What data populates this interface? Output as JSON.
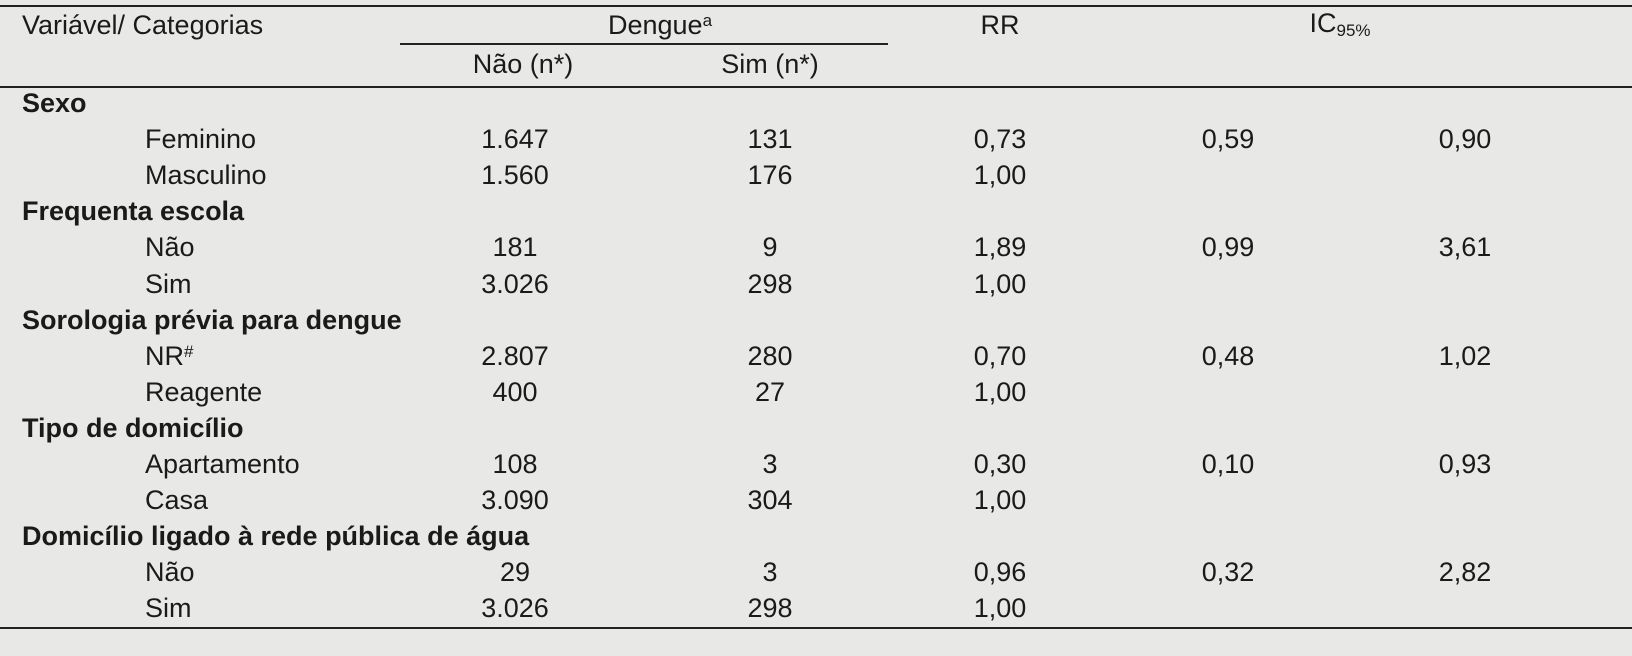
{
  "header": {
    "variable": "Variável/ Categorias",
    "dengue": "Dengue",
    "dengue_sup": "a",
    "nao": "Não (n*)",
    "sim": "Sim (n*)",
    "rr": "RR",
    "ic": "IC",
    "ic_sub": "95%"
  },
  "groups": [
    {
      "title": "Sexo",
      "rows": [
        {
          "label": "Feminino",
          "nao": "1.647",
          "sim": "131",
          "rr": "0,73",
          "ic_low": "0,59",
          "ic_high": "0,90"
        },
        {
          "label": "Masculino",
          "nao": "1.560",
          "sim": "176",
          "rr": "1,00"
        }
      ]
    },
    {
      "title": "Frequenta escola",
      "rows": [
        {
          "label": "Não",
          "nao": "181",
          "sim": "9",
          "rr": "1,89",
          "ic_low": "0,99",
          "ic_high": "3,61"
        },
        {
          "label": "Sim",
          "nao": "3.026",
          "sim": "298",
          "rr": "1,00"
        }
      ]
    },
    {
      "title": "Sorologia prévia para dengue",
      "rows": [
        {
          "label": "NR",
          "label_sup": "#",
          "nao": "2.807",
          "sim": "280",
          "rr": "0,70",
          "ic_low": "0,48",
          "ic_high": "1,02"
        },
        {
          "label": "Reagente",
          "nao": "400",
          "sim": "27",
          "rr": "1,00"
        }
      ]
    },
    {
      "title": "Tipo de domicílio",
      "rows": [
        {
          "label": "Apartamento",
          "nao": "108",
          "sim": "3",
          "rr": "0,30",
          "ic_low": "0,10",
          "ic_high": "0,93"
        },
        {
          "label": "Casa",
          "nao": "3.090",
          "sim": "304",
          "rr": "1,00"
        }
      ]
    },
    {
      "title": "Domicílio ligado à rede pública de água",
      "rows": [
        {
          "label": "Não",
          "nao": "29",
          "sim": "3",
          "rr": "0,96",
          "ic_low": "0,32",
          "ic_high": "2,82"
        },
        {
          "label": "Sim",
          "nao": "3.026",
          "sim": "298",
          "rr": "1,00"
        }
      ]
    }
  ]
}
